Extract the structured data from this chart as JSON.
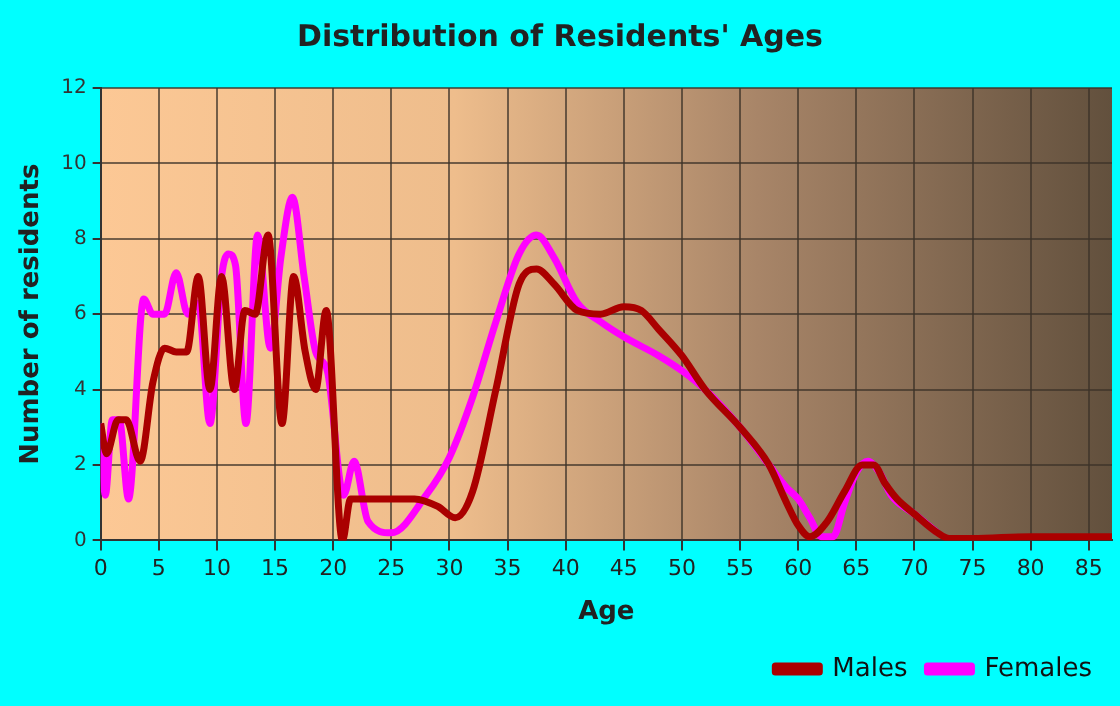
{
  "chart_data": {
    "type": "line",
    "title": "Distribution of Residents' Ages",
    "xlabel": "Age",
    "ylabel": "Number of residents",
    "xlim": [
      0,
      87
    ],
    "xticks": [
      0,
      5,
      10,
      15,
      20,
      25,
      30,
      35,
      40,
      45,
      50,
      55,
      60,
      65,
      70,
      75,
      80,
      85
    ],
    "ylim": [
      0,
      12
    ],
    "yticks": [
      0,
      2,
      4,
      6,
      8,
      10,
      12
    ],
    "grid": true,
    "legend": "bottom right",
    "marker": "none",
    "line_style": "solid",
    "series": [
      {
        "name": "Males",
        "color": "#aa0000",
        "x": [
          0,
          0.5,
          1.5,
          2.2,
          3.4,
          4.5,
          5.5,
          6.5,
          7.4,
          8.4,
          9.4,
          10.4,
          11.5,
          12.4,
          13.3,
          14.4,
          15.6,
          16.6,
          17.6,
          18.5,
          19.4,
          20.8,
          21.5,
          23,
          25,
          27,
          29,
          30.5,
          32,
          34,
          36,
          37.5,
          39,
          41,
          43,
          45,
          46.5,
          48,
          50,
          52,
          55,
          57.5,
          59,
          60,
          61,
          62.5,
          64,
          65.5,
          66.5,
          67.5,
          68.5,
          70,
          72,
          73,
          75,
          80,
          87
        ],
        "values": [
          3.1,
          2.3,
          3.2,
          3.2,
          2.1,
          4.2,
          5.1,
          5.0,
          5.0,
          7.0,
          4.0,
          7.0,
          4.0,
          6.1,
          6.0,
          8.1,
          3.1,
          7.0,
          5.0,
          4.0,
          6.1,
          0,
          1.1,
          1.1,
          1.1,
          1.1,
          0.9,
          0.6,
          1.3,
          4.0,
          6.8,
          7.2,
          6.8,
          6.1,
          6.0,
          6.2,
          6.1,
          5.6,
          4.9,
          4.0,
          3.0,
          2.0,
          1.0,
          0.4,
          0.1,
          0.5,
          1.3,
          2.0,
          2.0,
          1.5,
          1.1,
          0.7,
          0.2,
          0.05,
          0.05,
          0.1,
          0.1
        ]
      },
      {
        "name": "Females",
        "color": "#ff00ff",
        "x": [
          0,
          0.4,
          1,
          1.6,
          2.4,
          3.7,
          4.5,
          5.5,
          6.5,
          7.5,
          8.4,
          9.4,
          10.4,
          11,
          11.6,
          12.5,
          13.5,
          14.6,
          15.5,
          16.5,
          17.5,
          18.5,
          19.5,
          20.9,
          21.8,
          23,
          25,
          28,
          30,
          32,
          34,
          36,
          37.5,
          39,
          41,
          43,
          45,
          48,
          50,
          52,
          55,
          57.5,
          59,
          60,
          61,
          62,
          63,
          64,
          65,
          66,
          67,
          68,
          70,
          72
        ],
        "values": [
          3.1,
          1.2,
          3.2,
          3.2,
          1.1,
          6.4,
          6.0,
          6.0,
          7.1,
          6.0,
          6.3,
          3.1,
          7.0,
          7.6,
          7.3,
          3.1,
          8.1,
          5.1,
          7.5,
          9.1,
          7.0,
          5.0,
          4.5,
          1.2,
          2.1,
          0.5,
          0.2,
          1.2,
          2.2,
          3.8,
          5.8,
          7.6,
          8.1,
          7.5,
          6.3,
          5.8,
          5.4,
          4.9,
          4.5,
          4.0,
          3.0,
          2.0,
          1.4,
          1.1,
          0.6,
          0.1,
          0.1,
          1.0,
          1.8,
          2.1,
          1.8,
          1.2,
          0.7,
          0.2
        ]
      }
    ]
  }
}
